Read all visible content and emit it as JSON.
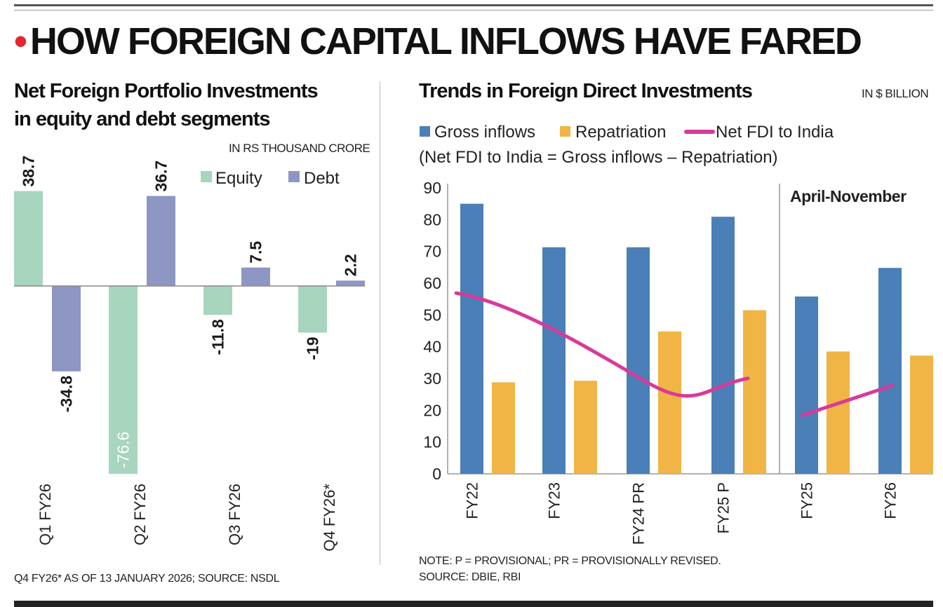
{
  "headline": "HOW FOREIGN CAPITAL INFLOWS HAVE FARED",
  "chart_data": [
    {
      "type": "bar",
      "title": "Net Foreign Portfolio Investments in equity and debt segments",
      "title_lines": [
        "Net Foreign Portfolio Investments",
        "in equity and debt segments"
      ],
      "unit": "IN RS THOUSAND CRORE",
      "categories": [
        "Q1 FY26",
        "Q2 FY26",
        "Q3 FY26",
        "Q4 FY26*"
      ],
      "series": [
        {
          "name": "Equity",
          "color": "#a8d5bd",
          "values": [
            38.7,
            -76.6,
            -11.8,
            -19
          ]
        },
        {
          "name": "Debt",
          "color": "#8e96c4",
          "values": [
            -34.8,
            36.7,
            7.5,
            2.2
          ]
        }
      ],
      "value_labels": [
        [
          "38.7",
          "-76.6",
          "-11.8",
          "-19"
        ],
        [
          "-34.8",
          "36.7",
          "7.5",
          "2.2"
        ]
      ],
      "ylim": [
        -76.6,
        38.7
      ],
      "legend_position": "top-right",
      "note": "Q4 FY26* AS OF 13 JANUARY 2026; SOURCE: NSDL"
    },
    {
      "type": "bar",
      "title": "Trends in Foreign Direct Investments",
      "unit": "IN $ BILLION",
      "subtitle": "(Net FDI to India = Gross inflows – Repatriation)",
      "categories": [
        "FY22",
        "FY23",
        "FY24 PR",
        "FY25 P",
        "FY25",
        "FY26"
      ],
      "period_label": "April-November",
      "period_start_index": 4,
      "series": [
        {
          "name": "Gross inflows",
          "color": "#4a7fb8",
          "values": [
            85,
            71.3,
            71.3,
            80.9,
            55.8,
            64.8
          ]
        },
        {
          "name": "Repatriation",
          "color": "#f0b544",
          "values": [
            28.8,
            29.3,
            44.8,
            51.5,
            38.5,
            37.2
          ]
        },
        {
          "name": "Net FDI  to India",
          "type": "line",
          "color": "#d63b9a",
          "values": [
            56,
            42,
            26.5,
            29.6,
            18.4,
            27.8
          ]
        }
      ],
      "y_ticks": [
        0,
        10,
        20,
        30,
        40,
        50,
        60,
        70,
        80,
        90
      ],
      "ylim": [
        0,
        90
      ],
      "legend_position": "top",
      "note_lines": [
        "NOTE:  P = PROVISIONAL; PR = PROVISIONALLY REVISED.",
        "SOURCE: DBIE, RBI"
      ]
    }
  ]
}
